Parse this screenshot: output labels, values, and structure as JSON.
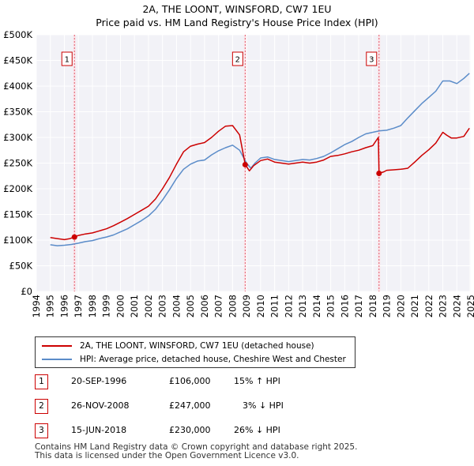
{
  "chart_data": {
    "type": "line",
    "title": "2A, THE LOONT, WINSFORD, CW7 1EU",
    "subtitle": "Price paid vs. HM Land Registry's House Price Index (HPI)",
    "xlabel": "",
    "ylabel": "",
    "xlim": [
      1994,
      2025
    ],
    "ylim": [
      0,
      500000
    ],
    "grid": true,
    "y_ticks": [
      0,
      50000,
      100000,
      150000,
      200000,
      250000,
      300000,
      350000,
      400000,
      450000,
      500000
    ],
    "y_tick_labels": [
      "£0",
      "£50K",
      "£100K",
      "£150K",
      "£200K",
      "£250K",
      "£300K",
      "£350K",
      "£400K",
      "£450K",
      "£500K"
    ],
    "x_ticks": [
      1994,
      1995,
      1996,
      1997,
      1998,
      1999,
      2000,
      2001,
      2002,
      2003,
      2004,
      2005,
      2006,
      2007,
      2008,
      2009,
      2010,
      2011,
      2012,
      2013,
      2014,
      2015,
      2016,
      2017,
      2018,
      2019,
      2020,
      2021,
      2022,
      2023,
      2024,
      2025
    ],
    "x_tick_labels": [
      "1994",
      "1995",
      "1996",
      "1997",
      "1998",
      "1999",
      "2000",
      "2001",
      "2002",
      "2003",
      "2004",
      "2005",
      "2006",
      "2007",
      "2008",
      "2009",
      "2010",
      "2011",
      "2012",
      "2013",
      "2014",
      "2015",
      "2016",
      "2017",
      "2018",
      "2019",
      "2020",
      "2021",
      "2022",
      "2023",
      "2024",
      "2025"
    ],
    "series": [
      {
        "name": "2A, THE LOONT, WINSFORD, CW7 1EU (detached house)",
        "color": "#cc0000",
        "x": [
          1995.0,
          1995.5,
          1996.0,
          1996.4,
          1996.72,
          1997.0,
          1997.5,
          1998.0,
          1998.5,
          1999.0,
          1999.5,
          2000.0,
          2000.5,
          2001.0,
          2001.5,
          2002.0,
          2002.5,
          2003.0,
          2003.5,
          2004.0,
          2004.5,
          2005.0,
          2005.5,
          2006.0,
          2006.5,
          2007.0,
          2007.5,
          2008.0,
          2008.5,
          2008.9,
          2009.2,
          2009.5,
          2010.0,
          2010.5,
          2011.0,
          2011.5,
          2012.0,
          2012.5,
          2013.0,
          2013.5,
          2014.0,
          2014.5,
          2015.0,
          2015.5,
          2016.0,
          2016.5,
          2017.0,
          2017.5,
          2018.0,
          2018.4,
          2018.45,
          2018.8,
          2019.0,
          2019.5,
          2020.0,
          2020.5,
          2021.0,
          2021.5,
          2022.0,
          2022.5,
          2023.0,
          2023.3,
          2023.6,
          2024.0,
          2024.5,
          2024.9
        ],
        "values": [
          105000,
          103000,
          101000,
          103000,
          106000,
          109000,
          112000,
          114000,
          118000,
          122000,
          128000,
          135000,
          142000,
          150000,
          158000,
          166000,
          180000,
          200000,
          222000,
          248000,
          272000,
          283000,
          287000,
          290000,
          300000,
          312000,
          322000,
          323000,
          305000,
          247000,
          235000,
          245000,
          255000,
          258000,
          252000,
          250000,
          248000,
          250000,
          252000,
          250000,
          252000,
          256000,
          263000,
          265000,
          268000,
          272000,
          275000,
          280000,
          284000,
          300000,
          230000,
          233000,
          236000,
          237000,
          238000,
          240000,
          252000,
          265000,
          276000,
          289000,
          310000,
          304000,
          299000,
          299000,
          302000,
          318000
        ]
      },
      {
        "name": "HPI: Average price, detached house, Cheshire West and Chester",
        "color": "#5b8cc9",
        "x": [
          1995.0,
          1995.5,
          1996.0,
          1996.5,
          1997.0,
          1997.5,
          1998.0,
          1998.5,
          1999.0,
          1999.5,
          2000.0,
          2000.5,
          2001.0,
          2001.5,
          2002.0,
          2002.5,
          2003.0,
          2003.5,
          2004.0,
          2004.5,
          2005.0,
          2005.5,
          2006.0,
          2006.5,
          2007.0,
          2007.5,
          2008.0,
          2008.5,
          2009.0,
          2009.3,
          2009.6,
          2010.0,
          2010.5,
          2011.0,
          2011.5,
          2012.0,
          2012.5,
          2013.0,
          2013.5,
          2014.0,
          2014.5,
          2015.0,
          2015.5,
          2016.0,
          2016.5,
          2017.0,
          2017.5,
          2018.0,
          2018.5,
          2019.0,
          2019.5,
          2020.0,
          2020.5,
          2021.0,
          2021.5,
          2022.0,
          2022.5,
          2023.0,
          2023.5,
          2024.0,
          2024.5,
          2024.9
        ],
        "values": [
          91000,
          89000,
          90000,
          91500,
          94000,
          97000,
          99000,
          103000,
          106000,
          110000,
          116000,
          122000,
          130000,
          138000,
          147000,
          160000,
          178000,
          198000,
          220000,
          238000,
          248000,
          254000,
          256000,
          266000,
          274000,
          280000,
          285000,
          275000,
          250000,
          240000,
          250000,
          260000,
          262000,
          257000,
          255000,
          253000,
          255000,
          257000,
          256000,
          259000,
          263000,
          270000,
          278000,
          286000,
          292000,
          300000,
          307000,
          310000,
          313000,
          314000,
          318000,
          323000,
          338000,
          352000,
          366000,
          378000,
          390000,
          410000,
          410000,
          405000,
          415000,
          425000
        ]
      }
    ],
    "markers": [
      {
        "label": "1",
        "x": 1996.72,
        "value": 106000
      },
      {
        "label": "2",
        "x": 2008.9,
        "value": 247000
      },
      {
        "label": "3",
        "x": 2018.45,
        "value": 230000
      }
    ]
  },
  "legend": {
    "entries": [
      {
        "label": "2A, THE LOONT, WINSFORD, CW7 1EU (detached house)",
        "color": "#cc0000"
      },
      {
        "label": "HPI: Average price, detached house, Cheshire West and Chester",
        "color": "#5b8cc9"
      }
    ]
  },
  "sales": [
    {
      "num": "1",
      "date": "20-SEP-1996",
      "price": "£106,000",
      "hpi": "15% ↑ HPI"
    },
    {
      "num": "2",
      "date": "26-NOV-2008",
      "price": "£247,000",
      "hpi": "3% ↓ HPI"
    },
    {
      "num": "3",
      "date": "15-JUN-2018",
      "price": "£230,000",
      "hpi": "26% ↓ HPI"
    }
  ],
  "footer": {
    "line1": "Contains HM Land Registry data © Crown copyright and database right 2025.",
    "line2": "This data is licensed under the Open Government Licence v3.0."
  }
}
